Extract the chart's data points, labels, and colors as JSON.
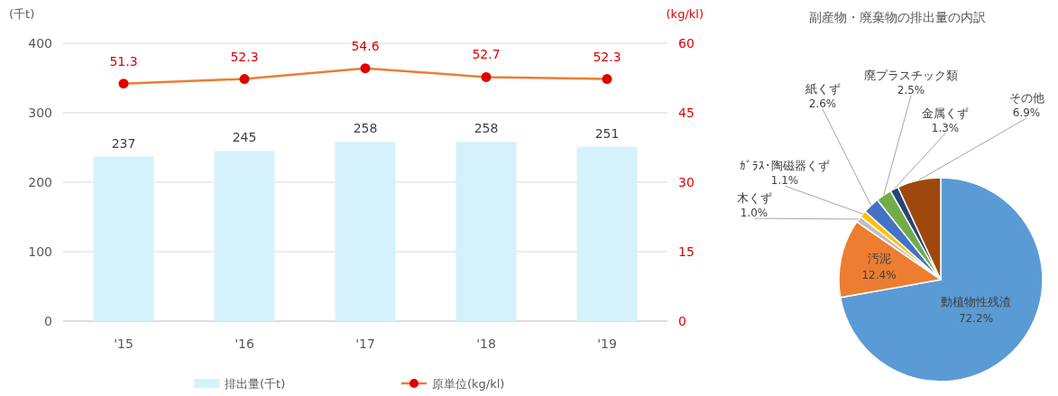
{
  "chart_data": [
    {
      "type": "bar",
      "categories": [
        "'15",
        "'16",
        "'17",
        "'18",
        "'19"
      ],
      "ylabel": "(千t)",
      "y2label": "(kg/kl)",
      "ylim": [
        0,
        400
      ],
      "yticks": [
        0,
        100,
        200,
        300,
        400
      ],
      "y2lim": [
        0,
        60
      ],
      "y2ticks": [
        0,
        15,
        30,
        45,
        60
      ],
      "grid": "y",
      "legend": "bottom",
      "data_labels": true,
      "series": [
        {
          "name": "排出量(千t)",
          "type": "bar",
          "color": "#d5f1fb",
          "values": [
            237,
            245,
            258,
            258,
            251
          ]
        },
        {
          "name": "原単位(kg/kl)",
          "type": "line",
          "axis": "y2",
          "color": "#ed7d31",
          "colors": [
            "#e00000",
            "#e00000",
            "#e00000",
            "#e00000",
            "#e00000"
          ],
          "marker": "circle",
          "values": [
            51.3,
            52.3,
            54.6,
            52.7,
            52.3
          ]
        }
      ]
    },
    {
      "type": "pie",
      "title": "副産物・廃棄物の排出量の内訳",
      "categories": [
        "動植物性残渣",
        "汚泥",
        "木くず",
        "ｶﾞﾗｽ･陶磁器くず",
        "紙くず",
        "廃プラスチック類",
        "金属くず",
        "その他"
      ],
      "values": [
        72.2,
        12.4,
        1.0,
        1.1,
        2.6,
        2.5,
        1.3,
        6.9
      ],
      "value_labels": [
        "72.2%",
        "12.4%",
        "1.0%",
        "1.1%",
        "2.6%",
        "2.5%",
        "1.3%",
        "6.9%"
      ],
      "colors": [
        "#5b9bd5",
        "#ed7d31",
        "#bfbfbf",
        "#ffc000",
        "#4472c4",
        "#70ad47",
        "#264478",
        "#9e480e"
      ]
    }
  ]
}
